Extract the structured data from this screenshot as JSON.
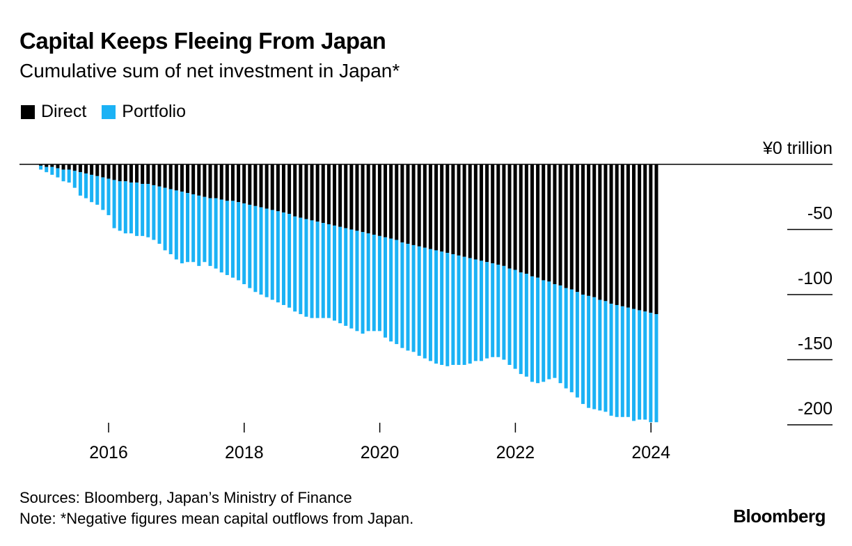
{
  "header": {
    "title": "Capital Keeps Fleeing From Japan",
    "subtitle": "Cumulative sum of net investment in Japan*"
  },
  "colors": {
    "direct": "#000000",
    "portfolio": "#1bb2f5",
    "axis": "#000000"
  },
  "chart_data": {
    "type": "bar",
    "stacked": true,
    "title": "Capital Keeps Fleeing From Japan",
    "subtitle": "Cumulative sum of net investment in Japan*",
    "unit": "¥ trillion",
    "y_axis_ticks": [
      {
        "value": 0,
        "label": "¥0 trillion"
      },
      {
        "value": -50,
        "label": "-50"
      },
      {
        "value": -100,
        "label": "-100"
      },
      {
        "value": -150,
        "label": "-150"
      },
      {
        "value": -200,
        "label": "-200"
      }
    ],
    "ylim": [
      -210,
      0
    ],
    "x_axis_ticks": [
      "2016",
      "2018",
      "2020",
      "2022",
      "2024"
    ],
    "xlim": [
      2014.9,
      2025.9
    ],
    "x_start": 2015.0,
    "x_step": 0.0833,
    "legend": [
      "Direct",
      "Portfolio"
    ],
    "series": [
      {
        "name": "Direct",
        "values": [
          -1,
          -2,
          -2,
          -3,
          -4,
          -4,
          -5,
          -6,
          -7,
          -8,
          -9,
          -10,
          -11,
          -12,
          -13,
          -13,
          -14,
          -14,
          -15,
          -15,
          -16,
          -17,
          -18,
          -19,
          -20,
          -21,
          -22,
          -23,
          -24,
          -25,
          -26,
          -26,
          -27,
          -28,
          -28,
          -29,
          -30,
          -31,
          -32,
          -33,
          -34,
          -35,
          -36,
          -37,
          -38,
          -40,
          -41,
          -42,
          -43,
          -44,
          -45,
          -46,
          -47,
          -48,
          -49,
          -50,
          -51,
          -52,
          -53,
          -54,
          -55,
          -56,
          -57,
          -58,
          -60,
          -61,
          -62,
          -63,
          -64,
          -65,
          -66,
          -67,
          -68,
          -69,
          -70,
          -71,
          -72,
          -73,
          -74,
          -75,
          -76,
          -77,
          -78,
          -80,
          -81,
          -83,
          -84,
          -86,
          -87,
          -89,
          -90,
          -92,
          -93,
          -95,
          -96,
          -98,
          -100,
          -101,
          -102,
          -104,
          -105,
          -107,
          -108,
          -109,
          -110,
          -111,
          -112,
          -113,
          -114,
          -115
        ]
      },
      {
        "name": "Portfolio",
        "values": [
          -3,
          -4,
          -6,
          -7,
          -9,
          -10,
          -13,
          -18,
          -19,
          -21,
          -22,
          -25,
          -28,
          -37,
          -38,
          -40,
          -39,
          -41,
          -40,
          -41,
          -42,
          -44,
          -48,
          -50,
          -53,
          -55,
          -53,
          -52,
          -54,
          -50,
          -52,
          -54,
          -56,
          -57,
          -59,
          -60,
          -62,
          -64,
          -66,
          -67,
          -68,
          -69,
          -70,
          -71,
          -72,
          -73,
          -74,
          -75,
          -75,
          -74,
          -73,
          -72,
          -73,
          -74,
          -75,
          -76,
          -77,
          -78,
          -75,
          -74,
          -73,
          -77,
          -79,
          -80,
          -81,
          -82,
          -82,
          -84,
          -85,
          -86,
          -87,
          -87,
          -87,
          -85,
          -84,
          -83,
          -81,
          -78,
          -77,
          -74,
          -72,
          -71,
          -72,
          -74,
          -76,
          -78,
          -79,
          -81,
          -81,
          -78,
          -75,
          -72,
          -75,
          -77,
          -79,
          -81,
          -84,
          -86,
          -86,
          -85,
          -85,
          -86,
          -86,
          -85,
          -84,
          -86,
          -84,
          -83,
          -84,
          -83
        ]
      }
    ]
  },
  "footer": {
    "sources": "Sources: Bloomberg, Japan’s Ministry of Finance",
    "note": "Note: *Negative figures mean capital outflows from Japan.",
    "brand": "Bloomberg"
  }
}
